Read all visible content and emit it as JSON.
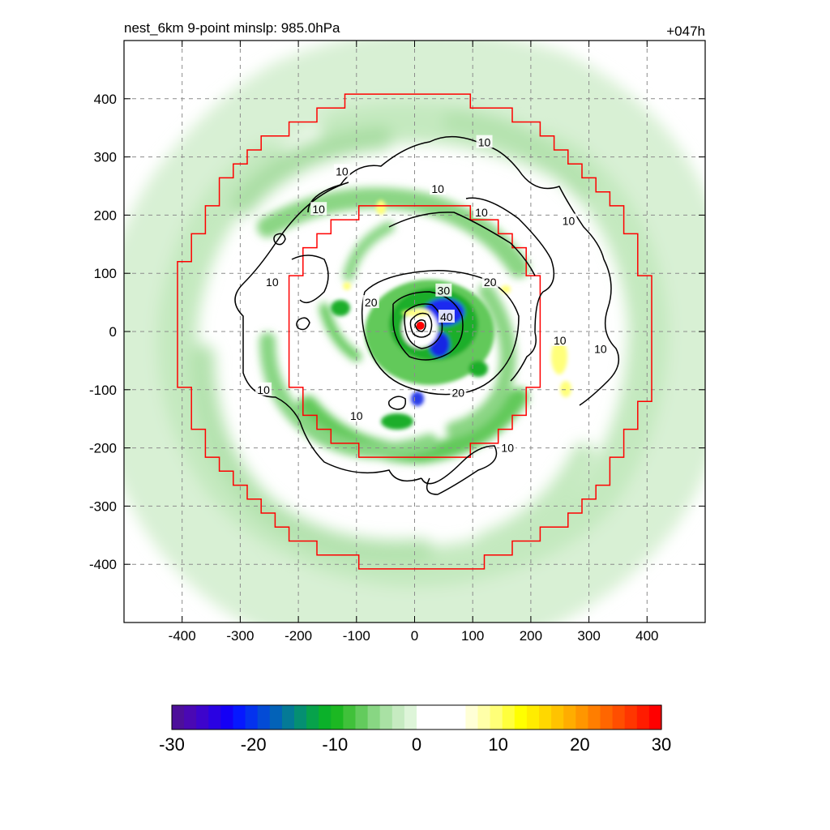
{
  "chart_data": {
    "type": "heatmap",
    "title_left": "nest_6km  9-point minslp: 985.0hPa",
    "title_right": "+047h",
    "x": {
      "range": [
        -500,
        500
      ],
      "ticks": [
        -400,
        -300,
        -200,
        -100,
        0,
        100,
        200,
        300,
        400
      ],
      "tick_labels": [
        "-400",
        "-300",
        "-200",
        "-100",
        "0",
        "100",
        "200",
        "300",
        "400"
      ]
    },
    "y": {
      "range": [
        -500,
        500
      ],
      "ticks": [
        400,
        300,
        200,
        100,
        0,
        -100,
        -200,
        -300,
        -400
      ],
      "tick_labels": [
        "400",
        "300",
        "200",
        "100",
        "0",
        "-100",
        "-200",
        "-300",
        "-400"
      ]
    },
    "grid": true,
    "contour_lines": {
      "color": "#000000",
      "levels": [
        10,
        20,
        30,
        40
      ],
      "labels": [
        {
          "text": "10",
          "x": 120,
          "y": 325
        },
        {
          "text": "10",
          "x": -125,
          "y": 275
        },
        {
          "text": "10",
          "x": -165,
          "y": 210
        },
        {
          "text": "10",
          "x": 40,
          "y": 245
        },
        {
          "text": "10",
          "x": 115,
          "y": 205
        },
        {
          "text": "10",
          "x": 265,
          "y": 190
        },
        {
          "text": "10",
          "x": -245,
          "y": 85
        },
        {
          "text": "10",
          "x": 250,
          "y": -15
        },
        {
          "text": "10",
          "x": 320,
          "y": -30
        },
        {
          "text": "10",
          "x": -260,
          "y": -100
        },
        {
          "text": "10",
          "x": -100,
          "y": -145
        },
        {
          "text": "10",
          "x": 160,
          "y": -200
        },
        {
          "text": "20",
          "x": 130,
          "y": 85
        },
        {
          "text": "20",
          "x": -75,
          "y": 50
        },
        {
          "text": "20",
          "x": 75,
          "y": -105
        },
        {
          "text": "30",
          "x": 50,
          "y": 70
        },
        {
          "text": "40",
          "x": 55,
          "y": 25
        }
      ]
    },
    "boundaries": {
      "color": "#ff0000",
      "outer_radius_km": 410,
      "inner_radius_km": 225
    },
    "center_marker": {
      "x": 10,
      "y": 10,
      "color": "#ff0000"
    },
    "colorbar": {
      "range": [
        -30,
        30
      ],
      "tick_labels": [
        "-30",
        "-20",
        "-10",
        "0",
        "10",
        "20",
        "30"
      ],
      "colors": [
        "#4d0f9a",
        "#4a08b4",
        "#3d04cc",
        "#2a02e2",
        "#1400f6",
        "#0618ff",
        "#0432ee",
        "#034bd6",
        "#0362b8",
        "#047a96",
        "#058f72",
        "#07a24b",
        "#0bb12a",
        "#1cb822",
        "#40c13a",
        "#63cb5d",
        "#88d683",
        "#a9e1a4",
        "#c6ebc1",
        "#def5d9",
        "#ffffff",
        "#ffffff",
        "#ffffff",
        "#ffffff",
        "#ffffd6",
        "#ffffa8",
        "#ffff78",
        "#ffff3c",
        "#ffff00",
        "#ffec00",
        "#ffd800",
        "#ffc300",
        "#ffad00",
        "#ff9600",
        "#ff7e00",
        "#ff6600",
        "#ff4e00",
        "#ff3600",
        "#ff1c00",
        "#ff0000"
      ]
    },
    "colors": {
      "light_green": "#d8f0d4",
      "mid_green": "#aadea4",
      "green": "#62c95a",
      "dark_green": "#1fae2a",
      "blue": "#1a2cf0",
      "yellow": "#ffff64"
    }
  }
}
